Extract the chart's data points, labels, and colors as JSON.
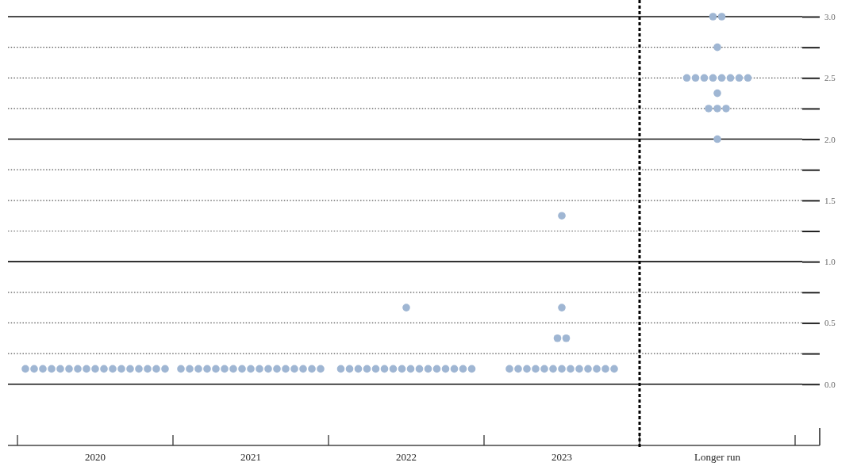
{
  "chart_data": {
    "type": "scatter",
    "categories": [
      "2020",
      "2021",
      "2022",
      "2023",
      "Longer run"
    ],
    "ylim": [
      -0.5,
      3.0
    ],
    "yticks": [
      {
        "value": 0,
        "label": "0.0"
      },
      {
        "value": 0.25,
        "label": null
      },
      {
        "value": 0.5,
        "label": "0.5"
      },
      {
        "value": 0.75,
        "label": null
      },
      {
        "value": 1,
        "label": "1.0"
      },
      {
        "value": 1.25,
        "label": null
      },
      {
        "value": 1.5,
        "label": "1.5"
      },
      {
        "value": 1.75,
        "label": null
      },
      {
        "value": 2,
        "label": "2.0"
      },
      {
        "value": 2.25,
        "label": null
      },
      {
        "value": 2.5,
        "label": "2.5"
      },
      {
        "value": 2.75,
        "label": null
      },
      {
        "value": 3,
        "label": "3.0"
      }
    ],
    "grid": "y",
    "marker": "circle",
    "series": [
      {
        "color": "#9fb6d3",
        "values": [
          0.125,
          0.125,
          0.125,
          0.125,
          2.0
        ]
      },
      {
        "color": "#9fb6d3",
        "values": [
          0.125,
          0.125,
          0.125,
          0.125,
          2.25
        ]
      },
      {
        "color": "#9fb6d3",
        "values": [
          0.125,
          0.125,
          0.125,
          0.125,
          2.25
        ]
      },
      {
        "color": "#9fb6d3",
        "values": [
          0.125,
          0.125,
          0.125,
          0.125,
          2.25
        ]
      },
      {
        "color": "#9fb6d3",
        "values": [
          0.125,
          0.125,
          0.125,
          0.125,
          2.375
        ]
      },
      {
        "color": "#9fb6d3",
        "values": [
          0.125,
          0.125,
          0.125,
          0.125,
          2.5
        ]
      },
      {
        "color": "#9fb6d3",
        "values": [
          0.125,
          0.125,
          0.125,
          0.125,
          2.5
        ]
      },
      {
        "color": "#9fb6d3",
        "values": [
          0.125,
          0.125,
          0.125,
          0.125,
          2.5
        ]
      },
      {
        "color": "#9fb6d3",
        "values": [
          0.125,
          0.125,
          0.125,
          0.125,
          2.5
        ]
      },
      {
        "color": "#9fb6d3",
        "values": [
          0.125,
          0.125,
          0.125,
          0.125,
          2.5
        ]
      },
      {
        "color": "#9fb6d3",
        "values": [
          0.125,
          0.125,
          0.125,
          0.125,
          2.5
        ]
      },
      {
        "color": "#9fb6d3",
        "values": [
          0.125,
          0.125,
          0.125,
          0.125,
          2.5
        ]
      },
      {
        "color": "#9fb6d3",
        "values": [
          0.125,
          0.125,
          0.125,
          0.125,
          2.5
        ]
      },
      {
        "color": "#9fb6d3",
        "values": [
          0.125,
          0.125,
          0.125,
          0.375,
          2.75
        ]
      },
      {
        "color": "#9fb6d3",
        "values": [
          0.125,
          0.125,
          0.125,
          0.375,
          3.0
        ]
      },
      {
        "color": "#9fb6d3",
        "values": [
          0.125,
          0.125,
          0.125,
          0.625,
          3.0
        ]
      },
      {
        "color": "#9fb6d3",
        "values": [
          0.125,
          0.125,
          0.625,
          1.375,
          null
        ]
      }
    ]
  }
}
